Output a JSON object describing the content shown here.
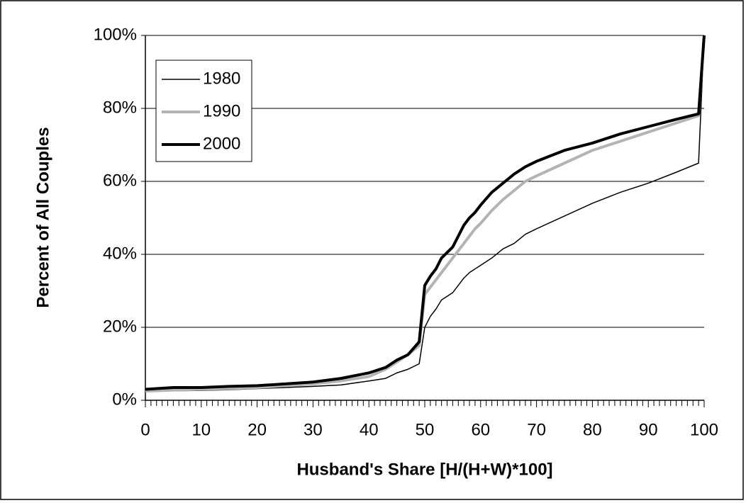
{
  "chart_data": {
    "type": "line",
    "x_label": "Husband's Share [H/(H+W)*100]",
    "y_label": "Percent of All Couples",
    "x": [
      0,
      5,
      10,
      15,
      20,
      25,
      30,
      35,
      40,
      43,
      45,
      47,
      49,
      50,
      51,
      52,
      53,
      54,
      55,
      56,
      57,
      58,
      59,
      60,
      62,
      64,
      66,
      68,
      70,
      75,
      80,
      85,
      90,
      95,
      99,
      100
    ],
    "series": [
      {
        "name": "1980",
        "color": "#000000",
        "line_width": 1.5,
        "values": [
          2.5,
          2.6,
          2.7,
          2.9,
          3.2,
          3.5,
          3.8,
          4.2,
          5.3,
          6,
          7.5,
          8.5,
          10,
          20,
          23,
          25,
          27.5,
          28.5,
          29.5,
          31.5,
          33.5,
          35,
          36,
          37,
          39,
          41.5,
          43,
          45.5,
          47,
          50.5,
          54,
          57,
          59.5,
          62.5,
          65,
          100
        ]
      },
      {
        "name": "1990",
        "color": "#b3b3b3",
        "line_width": 4,
        "values": [
          2.5,
          2.8,
          3,
          3.2,
          3.5,
          4,
          4.5,
          5.3,
          6.5,
          8.5,
          10.5,
          12.5,
          15,
          29,
          31,
          33,
          35,
          37,
          39,
          41,
          43,
          45,
          47,
          48.5,
          52,
          55,
          57.5,
          60,
          61.5,
          65,
          68.5,
          71,
          73.5,
          76,
          78,
          100
        ]
      },
      {
        "name": "2000",
        "color": "#000000",
        "line_width": 4,
        "values": [
          3,
          3.5,
          3.5,
          3.8,
          4,
          4.5,
          5,
          6,
          7.5,
          9,
          11,
          12.5,
          16,
          31.5,
          34,
          36,
          39,
          40.5,
          42,
          45,
          48,
          50,
          51.5,
          53.5,
          57,
          59.5,
          62,
          64,
          65.5,
          68.5,
          70.5,
          73,
          75,
          77,
          78.5,
          100
        ]
      }
    ],
    "xlim": [
      0,
      100
    ],
    "xticks": [
      0,
      10,
      20,
      30,
      40,
      50,
      60,
      70,
      80,
      90,
      100
    ],
    "ylim": [
      0,
      100
    ],
    "yticks": [
      {
        "value": 0,
        "label": "0%"
      },
      {
        "value": 20,
        "label": "20%"
      },
      {
        "value": 40,
        "label": "40%"
      },
      {
        "value": 60,
        "label": "60%"
      },
      {
        "value": 80,
        "label": "80%"
      },
      {
        "value": 100,
        "label": "100%"
      }
    ],
    "grid": true,
    "legend": "upper left"
  }
}
